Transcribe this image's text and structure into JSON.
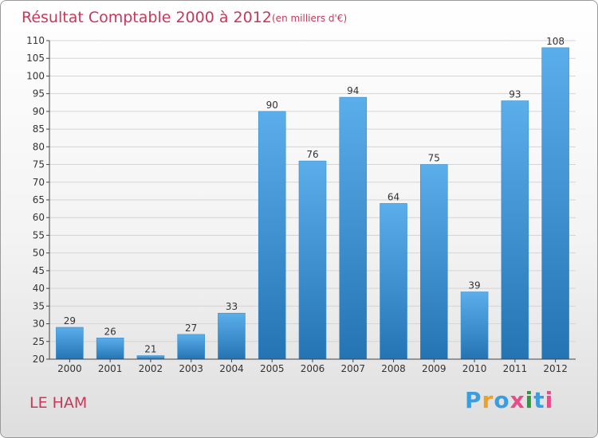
{
  "chart_data": {
    "type": "bar",
    "title": "Résultat Comptable 2000 à 2012",
    "subtitle": "(en milliers d'€)",
    "xlabel": "",
    "ylabel": "",
    "categories": [
      "2000",
      "2001",
      "2002",
      "2003",
      "2004",
      "2005",
      "2006",
      "2007",
      "2008",
      "2009",
      "2010",
      "2011",
      "2012"
    ],
    "values": [
      29,
      26,
      21,
      27,
      33,
      90,
      76,
      94,
      64,
      75,
      39,
      93,
      108
    ],
    "ylim": [
      20,
      110
    ],
    "yticks": [
      20,
      25,
      30,
      35,
      40,
      45,
      50,
      55,
      60,
      65,
      70,
      75,
      80,
      85,
      90,
      95,
      100,
      105,
      110
    ],
    "grid": true,
    "legend": "none"
  },
  "footer": {
    "commune": "LE HAM",
    "brand": "Proxiti"
  },
  "colors": {
    "bar_light": "#5aaeea",
    "bar_dark": "#2474b4",
    "title": "#c8385a",
    "grid": "#d4d4d4",
    "logo_letters": [
      "#3a9de0",
      "#f0a020",
      "#3a9de0",
      "#e84a8a",
      "#2a9a3c",
      "#3a9de0",
      "#e84a8a"
    ]
  }
}
